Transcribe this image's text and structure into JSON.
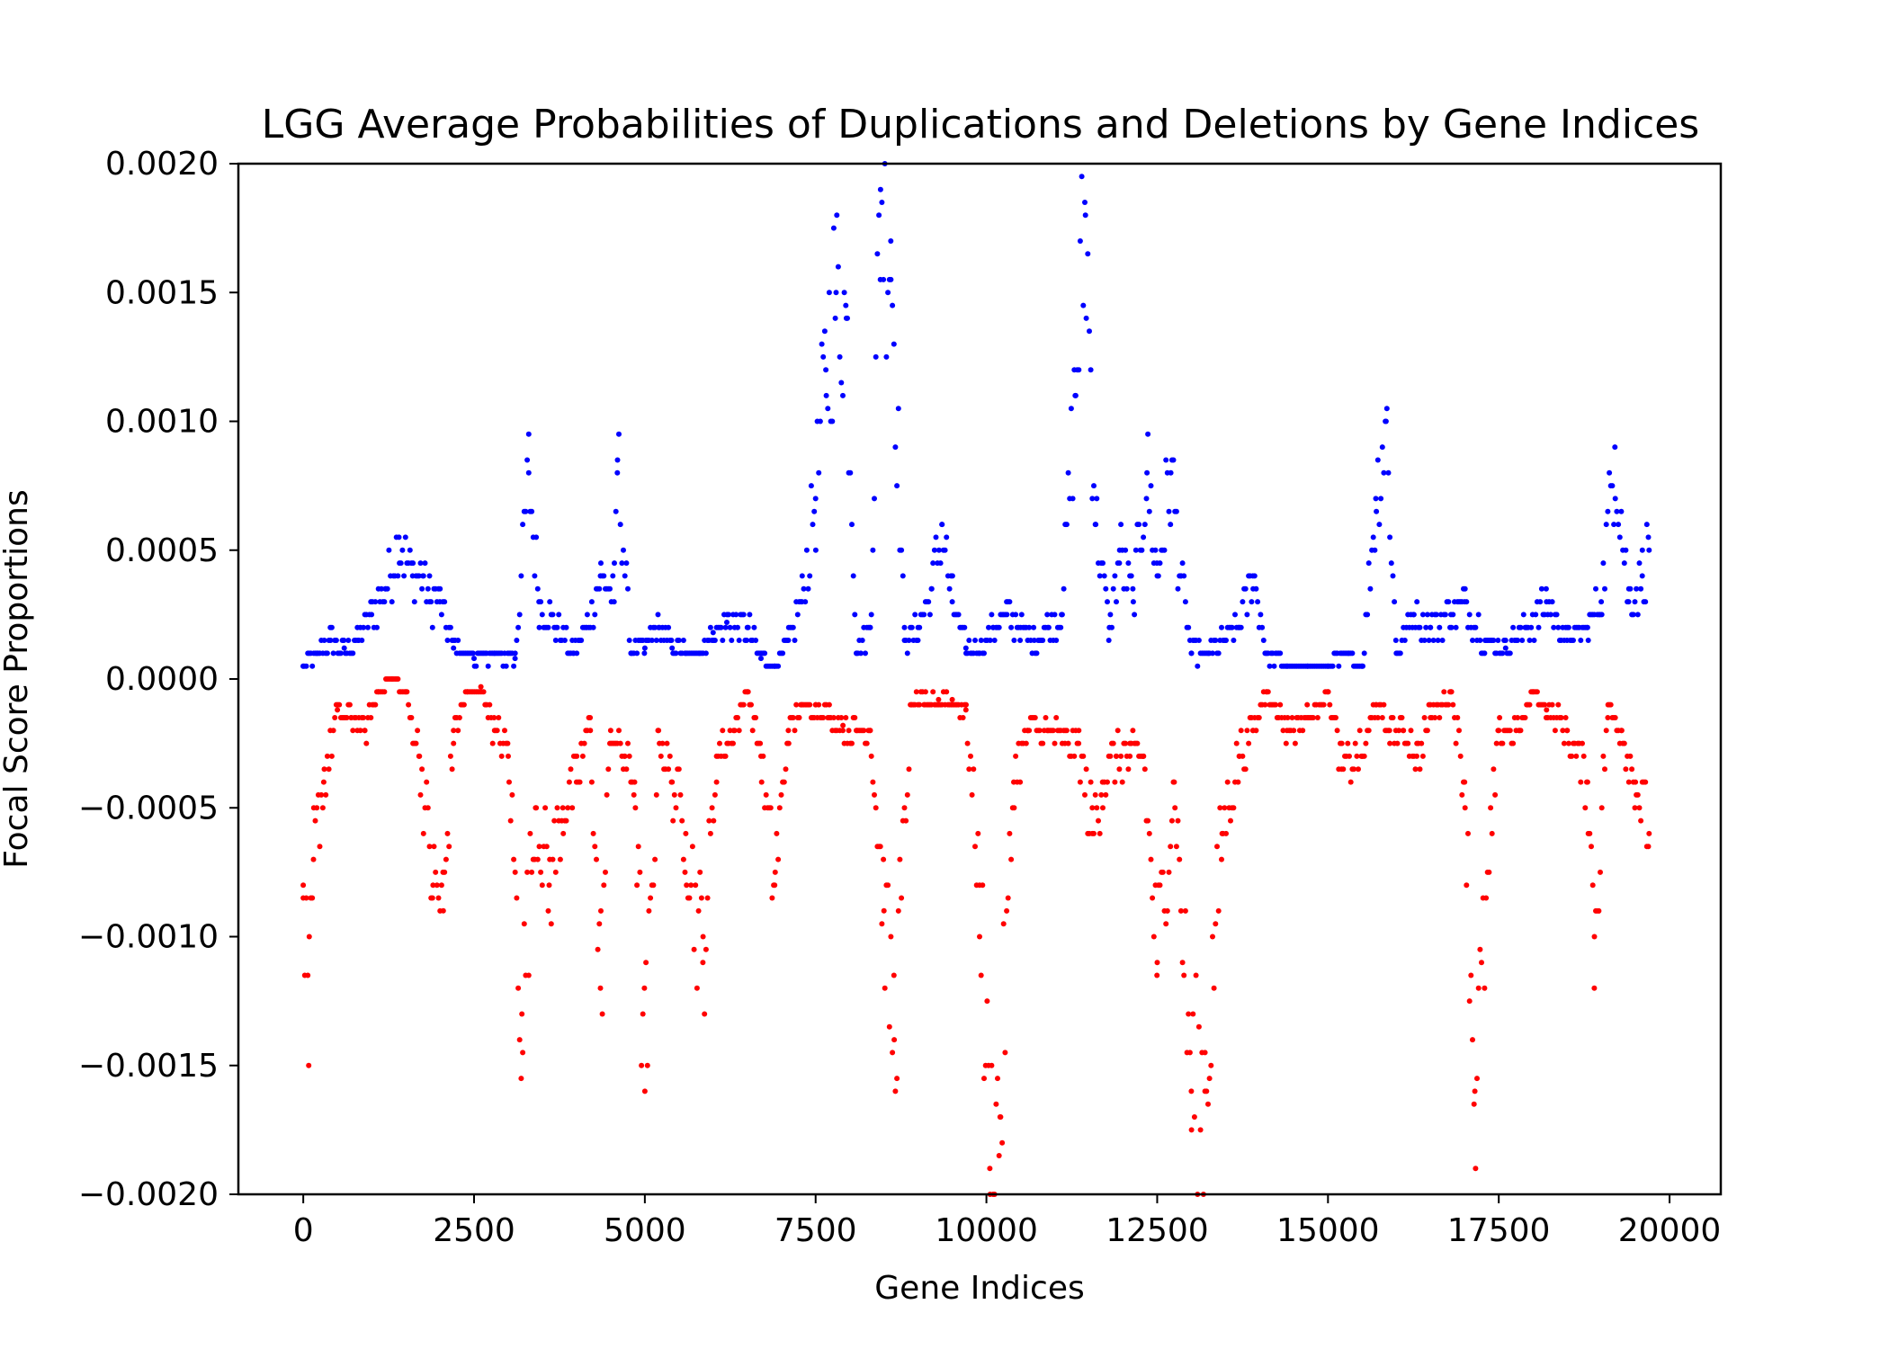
{
  "chart_data": {
    "type": "scatter",
    "title": "LGG Average Probabilities of Duplications and Deletions by Gene Indices",
    "xlabel": "Gene Indices",
    "ylabel": "Focal Score Proportions",
    "xlim": [
      -950,
      20750
    ],
    "ylim": [
      -0.002,
      0.002
    ],
    "xticks": [
      0,
      2500,
      5000,
      7500,
      10000,
      12500,
      15000,
      17500,
      20000
    ],
    "xtick_labels": [
      "0",
      "2500",
      "5000",
      "7500",
      "10000",
      "12500",
      "15000",
      "17500",
      "20000"
    ],
    "yticks": [
      0.002,
      0.0015,
      0.001,
      0.0005,
      0.0,
      -0.0005,
      -0.001,
      -0.0015,
      -0.002
    ],
    "ytick_labels": [
      "0.0020",
      "0.0015",
      "0.0010",
      "0.0005",
      "0.0000",
      "−0.0005",
      "−0.0010",
      "−0.0015",
      "−0.0020"
    ],
    "grid": false,
    "legend": "none",
    "gene_count": 19700,
    "series": [
      {
        "color": "#0000ff",
        "marker_radius": 3,
        "values": [
          [
            0,
            5e-05
          ],
          [
            200,
            0.0001
          ],
          [
            400,
            0.00015
          ],
          [
            600,
            0.00012
          ],
          [
            800,
            0.00015
          ],
          [
            1000,
            0.00025
          ],
          [
            1200,
            0.00035
          ],
          [
            1400,
            0.00055
          ],
          [
            1600,
            0.0004
          ],
          [
            1750,
            0.0004
          ],
          [
            1850,
            0.0003
          ],
          [
            2000,
            0.0003
          ],
          [
            2200,
            0.00012
          ],
          [
            2500,
            8e-05
          ],
          [
            2800,
            0.0001
          ],
          [
            3100,
            8e-05
          ],
          [
            3300,
            0.0008
          ],
          [
            3450,
            0.0003
          ],
          [
            3700,
            0.0002
          ],
          [
            3950,
            0.0001
          ],
          [
            4150,
            0.0002
          ],
          [
            4350,
            0.0004
          ],
          [
            4550,
            0.0003
          ],
          [
            4600,
            0.00085
          ],
          [
            4800,
            0.0001
          ],
          [
            5000,
            0.00012
          ],
          [
            5200,
            0.0002
          ],
          [
            5400,
            0.00012
          ],
          [
            5600,
            0.0001
          ],
          [
            5800,
            0.0001
          ],
          [
            6000,
            0.00018
          ],
          [
            6200,
            0.00022
          ],
          [
            6500,
            0.0002
          ],
          [
            6700,
            8e-05
          ],
          [
            6900,
            5e-05
          ],
          [
            7100,
            0.00015
          ],
          [
            7300,
            0.0003
          ],
          [
            7500,
            0.0007
          ],
          [
            7650,
            0.0012
          ],
          [
            7800,
            0.0015
          ],
          [
            7950,
            0.0014
          ],
          [
            8100,
            0.0001
          ],
          [
            8300,
            0.0002
          ],
          [
            8450,
            0.0019
          ],
          [
            8600,
            0.0017
          ],
          [
            8800,
            0.00015
          ],
          [
            9000,
            0.0002
          ],
          [
            9200,
            0.00035
          ],
          [
            9350,
            0.0006
          ],
          [
            9500,
            0.0003
          ],
          [
            9700,
            0.00012
          ],
          [
            9900,
            0.0001
          ],
          [
            10100,
            0.0002
          ],
          [
            10300,
            0.00025
          ],
          [
            10500,
            0.0002
          ],
          [
            10700,
            0.00015
          ],
          [
            10900,
            0.0002
          ],
          [
            11100,
            0.00025
          ],
          [
            11300,
            0.0011
          ],
          [
            11450,
            0.0018
          ],
          [
            11600,
            0.0006
          ],
          [
            11800,
            0.0002
          ],
          [
            11950,
            0.0005
          ],
          [
            12150,
            0.0003
          ],
          [
            12350,
            0.0008
          ],
          [
            12500,
            0.0004
          ],
          [
            12700,
            0.0008
          ],
          [
            12850,
            0.0004
          ],
          [
            13000,
            0.0001
          ],
          [
            13250,
            0.0001
          ],
          [
            13500,
            0.00015
          ],
          [
            13700,
            0.0002
          ],
          [
            13900,
            0.0004
          ],
          [
            14100,
            0.0001
          ],
          [
            14400,
            5e-05
          ],
          [
            14700,
            5e-05
          ],
          [
            15000,
            5e-05
          ],
          [
            15300,
            0.0001
          ],
          [
            15500,
            5e-05
          ],
          [
            15700,
            0.0007
          ],
          [
            15850,
            0.001
          ],
          [
            16000,
            0.0001
          ],
          [
            16250,
            0.00025
          ],
          [
            16500,
            0.0002
          ],
          [
            16800,
            0.00025
          ],
          [
            17000,
            0.0003
          ],
          [
            17300,
            0.00015
          ],
          [
            17600,
            0.00012
          ],
          [
            17900,
            0.0002
          ],
          [
            18200,
            0.0003
          ],
          [
            18500,
            0.00015
          ],
          [
            18800,
            0.0002
          ],
          [
            19000,
            0.0003
          ],
          [
            19200,
            0.0009
          ],
          [
            19400,
            0.0003
          ],
          [
            19600,
            0.0004
          ],
          [
            19700,
            0.0005
          ]
        ]
      },
      {
        "color": "#ff0000",
        "marker_radius": 3,
        "values": [
          [
            0,
            -0.0008
          ],
          [
            80,
            -0.0015
          ],
          [
            150,
            -0.0007
          ],
          [
            300,
            -0.0004
          ],
          [
            500,
            -0.00012
          ],
          [
            700,
            -0.00015
          ],
          [
            900,
            -0.0002
          ],
          [
            1100,
            -5e-05
          ],
          [
            1300,
            0.0
          ],
          [
            1500,
            -5e-05
          ],
          [
            1700,
            -0.0003
          ],
          [
            1900,
            -0.0008
          ],
          [
            2050,
            -0.0009
          ],
          [
            2200,
            -0.0002
          ],
          [
            2400,
            -5e-05
          ],
          [
            2600,
            -3e-05
          ],
          [
            2800,
            -0.0002
          ],
          [
            3000,
            -0.0003
          ],
          [
            3200,
            -0.0013
          ],
          [
            3400,
            -0.0005
          ],
          [
            3600,
            -0.0008
          ],
          [
            3800,
            -0.0005
          ],
          [
            4000,
            -0.0004
          ],
          [
            4200,
            -0.00015
          ],
          [
            4350,
            -0.0012
          ],
          [
            4500,
            -0.0002
          ],
          [
            4700,
            -0.0003
          ],
          [
            4850,
            -0.0004
          ],
          [
            5000,
            -0.0016
          ],
          [
            5200,
            -0.0002
          ],
          [
            5400,
            -0.0004
          ],
          [
            5600,
            -0.0006
          ],
          [
            5850,
            -0.0011
          ],
          [
            6050,
            -0.0003
          ],
          [
            6300,
            -0.0002
          ],
          [
            6500,
            -5e-05
          ],
          [
            6700,
            -0.0003
          ],
          [
            6900,
            -0.0008
          ],
          [
            7100,
            -0.0002
          ],
          [
            7300,
            -0.0001
          ],
          [
            7500,
            -0.0001
          ],
          [
            7700,
            -0.00015
          ],
          [
            7900,
            -0.00018
          ],
          [
            8100,
            -0.0002
          ],
          [
            8300,
            -0.0002
          ],
          [
            8500,
            -0.0009
          ],
          [
            8650,
            -0.0014
          ],
          [
            8900,
            -0.0001
          ],
          [
            9100,
            -0.0001
          ],
          [
            9300,
            -8e-05
          ],
          [
            9500,
            -8e-05
          ],
          [
            9700,
            -0.00012
          ],
          [
            9900,
            -0.0008
          ],
          [
            10050,
            -0.0019
          ],
          [
            10200,
            -0.0017
          ],
          [
            10400,
            -0.0004
          ],
          [
            10600,
            -0.0002
          ],
          [
            10900,
            -0.0002
          ],
          [
            11150,
            -0.00025
          ],
          [
            11350,
            -0.00025
          ],
          [
            11550,
            -0.0006
          ],
          [
            11700,
            -0.0004
          ],
          [
            11900,
            -0.0003
          ],
          [
            12100,
            -0.0003
          ],
          [
            12300,
            -0.0003
          ],
          [
            12500,
            -0.0011
          ],
          [
            12750,
            -0.0004
          ],
          [
            13000,
            -0.0016
          ],
          [
            13200,
            -0.0016
          ],
          [
            13450,
            -0.0006
          ],
          [
            13700,
            -0.0003
          ],
          [
            13900,
            -0.0002
          ],
          [
            14100,
            -5e-05
          ],
          [
            14400,
            -0.0002
          ],
          [
            14700,
            -0.00015
          ],
          [
            15000,
            -5e-05
          ],
          [
            15200,
            -0.00035
          ],
          [
            15500,
            -0.0003
          ],
          [
            15700,
            -0.0001
          ],
          [
            15900,
            -0.0002
          ],
          [
            16100,
            -0.0002
          ],
          [
            16300,
            -0.0003
          ],
          [
            16500,
            -0.00015
          ],
          [
            16800,
            -5e-05
          ],
          [
            17000,
            -0.0004
          ],
          [
            17150,
            -0.0016
          ],
          [
            17500,
            -0.0002
          ],
          [
            17800,
            -0.0002
          ],
          [
            18000,
            -5e-05
          ],
          [
            18200,
            -0.00012
          ],
          [
            18500,
            -0.0002
          ],
          [
            18800,
            -0.0004
          ],
          [
            18900,
            -0.001
          ],
          [
            19100,
            -0.0001
          ],
          [
            19300,
            -0.0002
          ],
          [
            19500,
            -0.0004
          ],
          [
            19700,
            -0.0006
          ]
        ]
      }
    ]
  }
}
